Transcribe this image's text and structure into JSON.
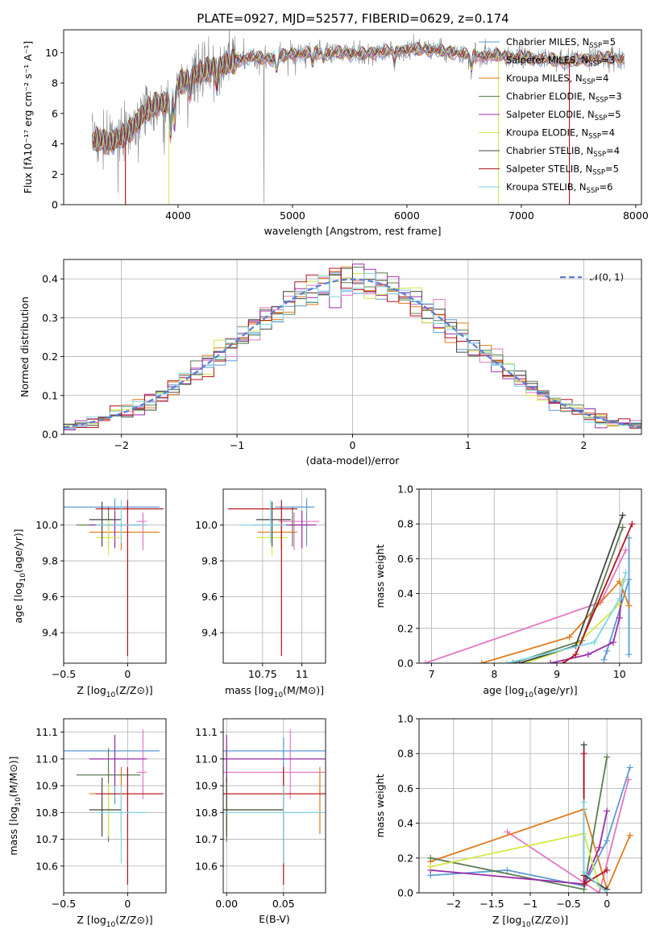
{
  "figure": {
    "title": "PLATE=0927, MJD=52577, FIBERID=0629, z=0.174"
  },
  "chart_data": [
    {
      "id": "spectrum",
      "type": "line",
      "xlabel": "wavelength [Angstrom, rest frame]",
      "ylabel": "Flux [fλ10⁻¹⁷ erg cm⁻² s⁻¹ A⁻¹]",
      "xlim": [
        3000,
        8050
      ],
      "ylim": [
        0,
        11.5
      ],
      "xticks": [
        4000,
        5000,
        6000,
        7000,
        8000
      ],
      "yticks": [
        0,
        2,
        4,
        6,
        8,
        10
      ],
      "legend_position": "top-right",
      "data_color": "#808080",
      "data_samples": {
        "x": [
          3250,
          3400,
          3550,
          3700,
          3800,
          3900,
          4000,
          4100,
          4200,
          4300,
          4400,
          4500,
          4600,
          4800,
          5000,
          5200,
          5400,
          5600,
          5800,
          6000,
          6200,
          6400,
          6600,
          6800,
          7000,
          7200,
          7400,
          7600,
          7800,
          7900
        ],
        "y": [
          4.3,
          4.1,
          4.6,
          6.0,
          6.6,
          6.7,
          7.9,
          8.4,
          8.7,
          9.0,
          9.2,
          9.4,
          9.7,
          9.6,
          9.9,
          10.0,
          10.0,
          9.9,
          10.1,
          10.2,
          10.2,
          10.0,
          9.8,
          9.8,
          9.7,
          9.6,
          9.4,
          9.6,
          9.7,
          9.5
        ]
      },
      "series": [
        {
          "name": "Chabrier MILES, N_SSP=5",
          "label_prefix": "Chabrier MILES, N",
          "label_sub": "SSP",
          "label_suffix": "=5",
          "color": "#5b9bd5"
        },
        {
          "name": "Salpeter MILES, N_SSP=3",
          "label_prefix": "Salpeter MILES, N",
          "label_sub": "SSP",
          "label_suffix": "=3",
          "color": "#e377c2"
        },
        {
          "name": "Kroupa MILES, N_SSP=4",
          "label_prefix": "Kroupa MILES, N",
          "label_sub": "SSP",
          "label_suffix": "=4",
          "color": "#e07b1a"
        },
        {
          "name": "Chabrier ELODIE, N_SSP=3",
          "label_prefix": "Chabrier ELODIE, N",
          "label_sub": "SSP",
          "label_suffix": "=3",
          "color": "#5a7d50"
        },
        {
          "name": "Salpeter ELODIE, N_SSP=5",
          "label_prefix": "Salpeter ELODIE, N",
          "label_sub": "SSP",
          "label_suffix": "=5",
          "color": "#9b2ca8"
        },
        {
          "name": "Kroupa ELODIE, N_SSP=4",
          "label_prefix": "Kroupa ELODIE, N",
          "label_sub": "SSP",
          "label_suffix": "=4",
          "color": "#d4e84a"
        },
        {
          "name": "Chabrier STELIB, N_SSP=4",
          "label_prefix": "Chabrier STELIB, N",
          "label_sub": "SSP",
          "label_suffix": "=4",
          "color": "#444444"
        },
        {
          "name": "Salpeter STELIB, N_SSP=5",
          "label_prefix": "Salpeter STELIB, N",
          "label_sub": "SSP",
          "label_suffix": "=5",
          "color": "#b3121b"
        },
        {
          "name": "Kroupa STELIB, N_SSP=6",
          "label_prefix": "Kroupa STELIB, N",
          "label_sub": "SSP",
          "label_suffix": "=6",
          "color": "#7fd6e6"
        }
      ]
    },
    {
      "id": "residuals",
      "type": "histogram",
      "xlabel": "(data-model)/error",
      "ylabel": "Normed distribution",
      "xlim": [
        -2.5,
        2.5
      ],
      "ylim": [
        0,
        0.45
      ],
      "xticks": [
        -2,
        -1,
        0,
        1,
        2
      ],
      "yticks": [
        0.0,
        0.1,
        0.2,
        0.3,
        0.4
      ],
      "grid": true,
      "bin_width": 0.1,
      "reference_curve": {
        "name": "N(0,1)",
        "label": "𝒩(0, 1)",
        "mean": 0,
        "sigma": 1,
        "color": "#5b7bd5",
        "style": "dashed"
      },
      "legend_position": "top-right"
    },
    {
      "id": "age_vs_Z",
      "type": "errorbar",
      "xlabel_prefix": "Z [log",
      "xlabel_sub": "10",
      "xlabel_suffix": "(Z/Z⊙)]",
      "ylabel_prefix": "age  [log",
      "ylabel_sub": "10",
      "ylabel_suffix": "(age/yr)]",
      "xlim": [
        -0.5,
        0.3
      ],
      "ylim": [
        9.23,
        10.2
      ],
      "xticks": [
        -0.5,
        0.0
      ],
      "yticks": [
        9.4,
        9.6,
        9.8,
        10.0
      ],
      "grid": true
    },
    {
      "id": "age_vs_mass",
      "type": "errorbar",
      "xlabel_prefix": "mass [log",
      "xlabel_sub": "10",
      "xlabel_suffix": "(M/M⊙)]",
      "ylabel": "",
      "xlim": [
        10.5,
        11.15
      ],
      "ylim": [
        9.23,
        10.2
      ],
      "xticks": [
        10.75,
        11.0
      ],
      "yticks": [
        9.4,
        9.6,
        9.8,
        10.0
      ],
      "grid": true
    },
    {
      "id": "weight_vs_age",
      "type": "line",
      "xlabel_prefix": "age  [log",
      "xlabel_sub": "10",
      "xlabel_suffix": "(age/yr)]",
      "ylabel": "mass weight",
      "xlim": [
        6.8,
        10.35
      ],
      "ylim": [
        0,
        1.0
      ],
      "xticks": [
        7,
        8,
        9,
        10
      ],
      "yticks": [
        0.0,
        0.2,
        0.4,
        0.6,
        0.8,
        1.0
      ],
      "grid": true
    },
    {
      "id": "mass_vs_Z",
      "type": "errorbar",
      "xlabel_prefix": "Z [log",
      "xlabel_sub": "10",
      "xlabel_suffix": "(Z/Z⊙)]",
      "ylabel_prefix": "mass [log",
      "ylabel_sub": "10",
      "ylabel_suffix": "(M/M⊙)]",
      "xlim": [
        -0.5,
        0.3
      ],
      "ylim": [
        10.5,
        11.15
      ],
      "xticks": [
        -0.5,
        0.0
      ],
      "yticks": [
        10.6,
        10.7,
        10.8,
        10.9,
        11.0,
        11.1
      ],
      "grid": true
    },
    {
      "id": "mass_vs_ebv",
      "type": "errorbar",
      "xlabel": "E(B-V)",
      "ylabel": "",
      "xlim": [
        -0.003,
        0.087
      ],
      "ylim": [
        10.5,
        11.15
      ],
      "xticks": [
        0.0,
        0.05
      ],
      "xtick_labels": [
        "0.00",
        "0.05"
      ],
      "yticks": [
        10.6,
        10.7,
        10.8,
        10.9,
        11.0,
        11.1
      ],
      "grid": true
    },
    {
      "id": "weight_vs_Z",
      "type": "line",
      "xlabel_prefix": "Z [log",
      "xlabel_sub": "10",
      "xlabel_suffix": "(Z/Z⊙)]",
      "ylabel": "mass weight",
      "xlim": [
        -2.45,
        0.45
      ],
      "ylim": [
        0,
        1.0
      ],
      "xticks": [
        -2.0,
        -1.5,
        -1.0,
        -0.5,
        0.0
      ],
      "yticks": [
        0.0,
        0.2,
        0.4,
        0.6,
        0.8,
        1.0
      ],
      "grid": true
    }
  ],
  "model_points": [
    {
      "color": "#5b9bd5",
      "Z": -0.1,
      "Z_err": [
        0.45,
        0.35
      ],
      "age": 10.1,
      "age_err": [
        0.22,
        0.05
      ],
      "mass": 11.03,
      "mass_err": [
        0.2,
        0.05
      ],
      "ebv": 0.05,
      "ebv_err": [
        0.13,
        0.06
      ],
      "w_age": [
        [
          9.75,
          0.02
        ],
        [
          9.8,
          0.07
        ],
        [
          10.15,
          0.48
        ],
        [
          10.15,
          0.72
        ],
        [
          10.15,
          0.05
        ]
      ],
      "w_Z": [
        [
          -2.3,
          0.1
        ],
        [
          -1.3,
          0.13
        ],
        [
          -0.3,
          0.04
        ],
        [
          0,
          0.3
        ],
        [
          0.3,
          0.72
        ]
      ]
    },
    {
      "color": "#e377c2",
      "Z": 0.12,
      "Z_err": [
        0.05,
        0.03
      ],
      "age": 10.02,
      "age_err": [
        0.16,
        0.05
      ],
      "mass": 10.95,
      "mass_err": [
        0.1,
        0.16
      ],
      "ebv": 0.056,
      "ebv_err": [
        0.1,
        0.16
      ],
      "w_age": [
        [
          6.9,
          0.0
        ],
        [
          9.7,
          0.35
        ],
        [
          10.1,
          0.65
        ]
      ],
      "w_Z": [
        [
          -1.3,
          0.35
        ],
        [
          -0.1,
          0.0
        ],
        [
          0.28,
          0.65
        ]
      ]
    },
    {
      "color": "#e07b1a",
      "Z": -0.05,
      "Z_err": [
        0.25,
        0.3
      ],
      "age": 9.96,
      "age_err": [
        0.1,
        0.05
      ],
      "mass": 10.87,
      "mass_err": [
        0.15,
        0.1
      ],
      "ebv": 0.082,
      "ebv_err": [
        0.15,
        0.09
      ],
      "w_age": [
        [
          7.8,
          0.0
        ],
        [
          9.2,
          0.15
        ],
        [
          10.0,
          0.47
        ],
        [
          10.15,
          0.33
        ]
      ],
      "w_Z": [
        [
          -2.3,
          0.18
        ],
        [
          -0.3,
          0.48
        ],
        [
          0.0,
          0.02
        ],
        [
          0.3,
          0.33
        ]
      ]
    },
    {
      "color": "#5a7d50",
      "Z": -0.15,
      "Z_err": [
        0.25,
        0.25
      ],
      "age": 10.0,
      "age_err": [
        0.12,
        0.1
      ],
      "mass": 10.94,
      "mass_err": [
        0.25,
        0.1
      ],
      "ebv": 0.0,
      "ebv_err": [
        0.0,
        0.0
      ],
      "w_age": [
        [
          8.3,
          0.0
        ],
        [
          9.4,
          0.13
        ],
        [
          10.05,
          0.78
        ]
      ],
      "w_Z": [
        [
          -2.3,
          0.2
        ],
        [
          -0.3,
          0.02
        ],
        [
          0.0,
          0.78
        ]
      ]
    },
    {
      "color": "#9b2ca8",
      "Z": -0.1,
      "Z_err": [
        0.2,
        0.25
      ],
      "age": 10.0,
      "age_err": [
        0.13,
        0.08
      ],
      "mass": 11.0,
      "mass_err": [
        0.1,
        0.09
      ],
      "ebv": 0.0,
      "ebv_err": [
        0.05,
        0.09
      ],
      "w_age": [
        [
          8.9,
          0.0
        ],
        [
          9.5,
          0.05
        ],
        [
          9.9,
          0.12
        ],
        [
          10.0,
          0.26
        ],
        [
          10.05,
          0.47
        ]
      ],
      "w_Z": [
        [
          -2.3,
          0.13
        ],
        [
          -0.3,
          0.05
        ],
        [
          -0.1,
          0.26
        ],
        [
          0.0,
          0.47
        ]
      ]
    },
    {
      "color": "#d4e84a",
      "Z": -0.15,
      "Z_err": [
        0.1,
        0.1
      ],
      "age": 9.93,
      "age_err": [
        0.1,
        0.1
      ],
      "mass": 10.81,
      "mass_err": [
        0.1,
        0.1
      ],
      "ebv": 0.0,
      "ebv_err": [
        0.13,
        0.05
      ],
      "w_age": [
        [
          8.5,
          0.0
        ],
        [
          9.3,
          0.1
        ],
        [
          10.0,
          0.34
        ],
        [
          10.05,
          0.47
        ]
      ],
      "w_Z": [
        [
          -2.3,
          0.15
        ],
        [
          -0.3,
          0.34
        ],
        [
          -0.1,
          0.04
        ]
      ]
    },
    {
      "color": "#444444",
      "Z": -0.2,
      "Z_err": [
        0.1,
        0.15
      ],
      "age": 10.03,
      "age_err": [
        0.15,
        0.1
      ],
      "mass": 10.81,
      "mass_err": [
        0.1,
        0.12
      ],
      "ebv": 0.0,
      "ebv_err": [
        0.05,
        0.05
      ],
      "w_age": [
        [
          8.4,
          0.0
        ],
        [
          9.3,
          0.1
        ],
        [
          10.05,
          0.85
        ]
      ],
      "w_Z": [
        [
          -0.3,
          0.85
        ],
        [
          -0.3,
          0.1
        ],
        [
          0.0,
          0.02
        ]
      ]
    },
    {
      "color": "#b3121b",
      "Z": 0.0,
      "Z_err": [
        0.25,
        0.28
      ],
      "age": 10.09,
      "age_err": [
        0.82,
        0.05
      ],
      "mass": 10.87,
      "mass_err": [
        0.34,
        0.1
      ],
      "ebv": 0.05,
      "ebv_err": [
        0.08,
        0.05
      ],
      "w_age": [
        [
          9.1,
          0.0
        ],
        [
          9.3,
          0.05
        ],
        [
          10.2,
          0.8
        ]
      ],
      "w_Z": [
        [
          -0.3,
          0.8
        ],
        [
          -0.3,
          0.05
        ],
        [
          0.0,
          0.13
        ]
      ]
    },
    {
      "color": "#7fd6e6",
      "Z": -0.05,
      "Z_err": [
        0.2,
        0.2
      ],
      "age": 10.0,
      "age_err": [
        0.1,
        0.14
      ],
      "mass": 10.8,
      "mass_err": [
        0.19,
        0.1
      ],
      "ebv": 0.05,
      "ebv_err": [
        0.1,
        0.15
      ],
      "w_age": [
        [
          8.2,
          0.0
        ],
        [
          9.6,
          0.12
        ],
        [
          10.0,
          0.37
        ],
        [
          10.1,
          0.52
        ]
      ],
      "w_Z": [
        [
          -0.3,
          0.52
        ],
        [
          -0.3,
          0.12
        ],
        [
          0.0,
          0.0
        ]
      ]
    }
  ]
}
